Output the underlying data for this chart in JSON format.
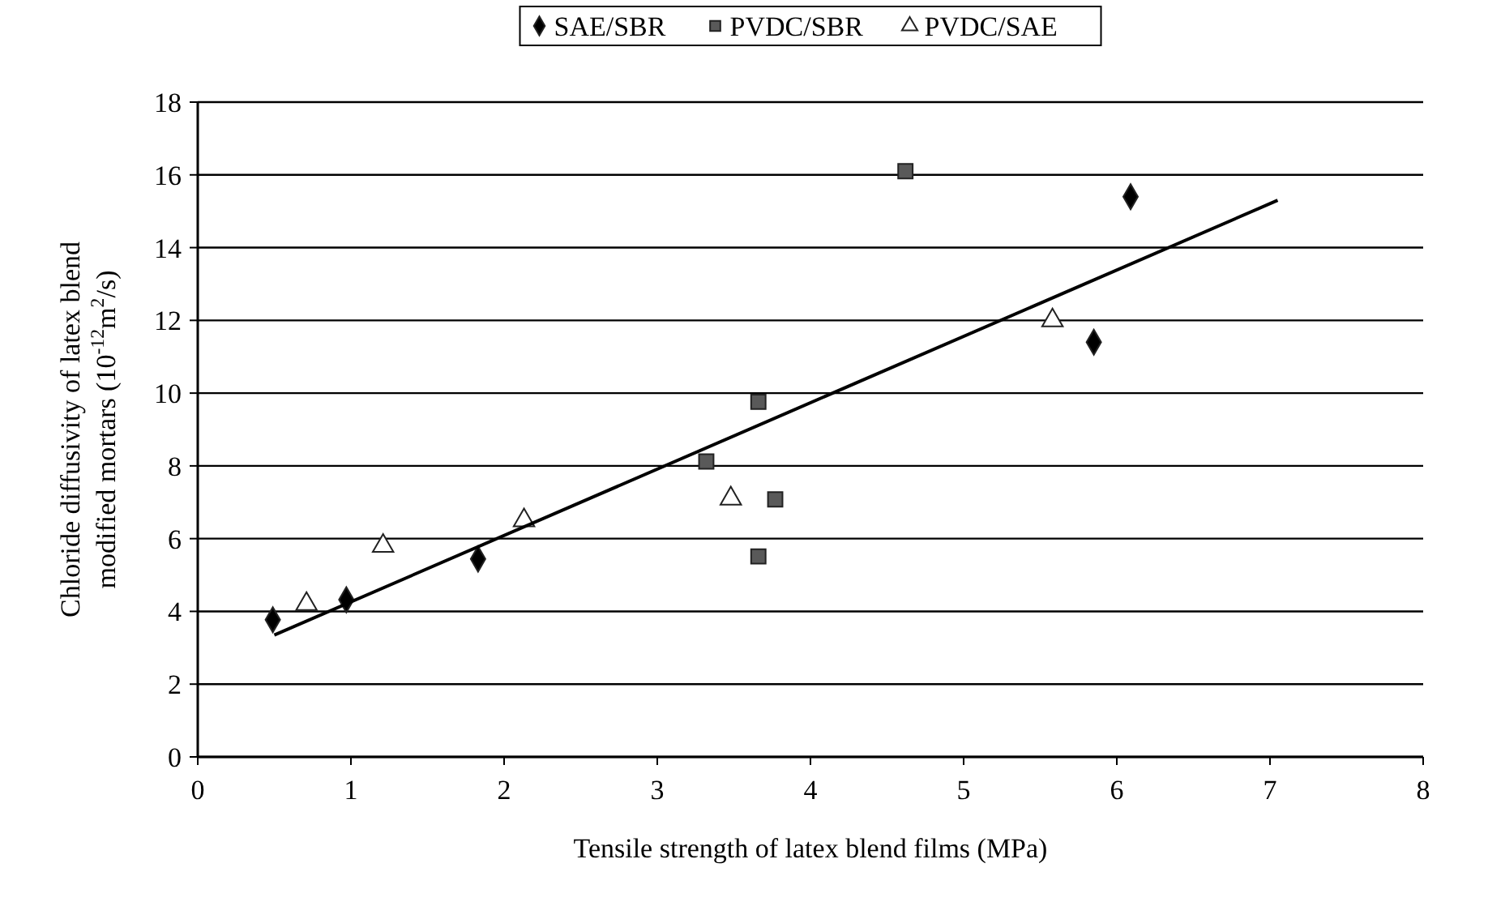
{
  "chart_data": {
    "type": "scatter",
    "xlabel": "Tensile strength of latex blend films (MPa)",
    "ylabel": "Chloride diffusivity of latex blend\nmodified mortars (10$^{-12}$m$^{2}$/s)",
    "series": [
      {
        "name": "SAE/SBR",
        "color": "#000000",
        "marker": "diamond",
        "x": [
          0.49,
          0.97,
          1.83,
          6.09,
          5.85
        ],
        "values": [
          3.77,
          4.32,
          5.44,
          15.4,
          11.4
        ]
      },
      {
        "name": "PVDC/SBR",
        "color": "#595959",
        "marker": "square",
        "x": [
          4.62,
          3.66,
          3.32,
          3.77,
          3.66
        ],
        "values": [
          16.1,
          9.76,
          8.12,
          7.08,
          5.51
        ]
      },
      {
        "name": "PVDC/SAE",
        "color": "#ffffff",
        "marker": "triangle",
        "x": [
          0.71,
          1.21,
          2.13,
          3.48,
          5.58
        ],
        "values": [
          4.2,
          5.8,
          6.5,
          7.1,
          12.0
        ]
      },
      {
        "type": "line",
        "color": "#000000",
        "x": [
          0.5,
          7.05
        ],
        "values": [
          3.35,
          15.3
        ]
      }
    ],
    "xlim": [
      0,
      8
    ],
    "xticks": [
      0,
      1,
      2,
      3,
      4,
      5,
      6,
      7,
      8
    ],
    "ylim": [
      0,
      18
    ],
    "yticks": [
      0,
      2,
      4,
      6,
      8,
      10,
      12,
      14,
      16,
      18
    ],
    "grid": "y",
    "legend": "top"
  }
}
